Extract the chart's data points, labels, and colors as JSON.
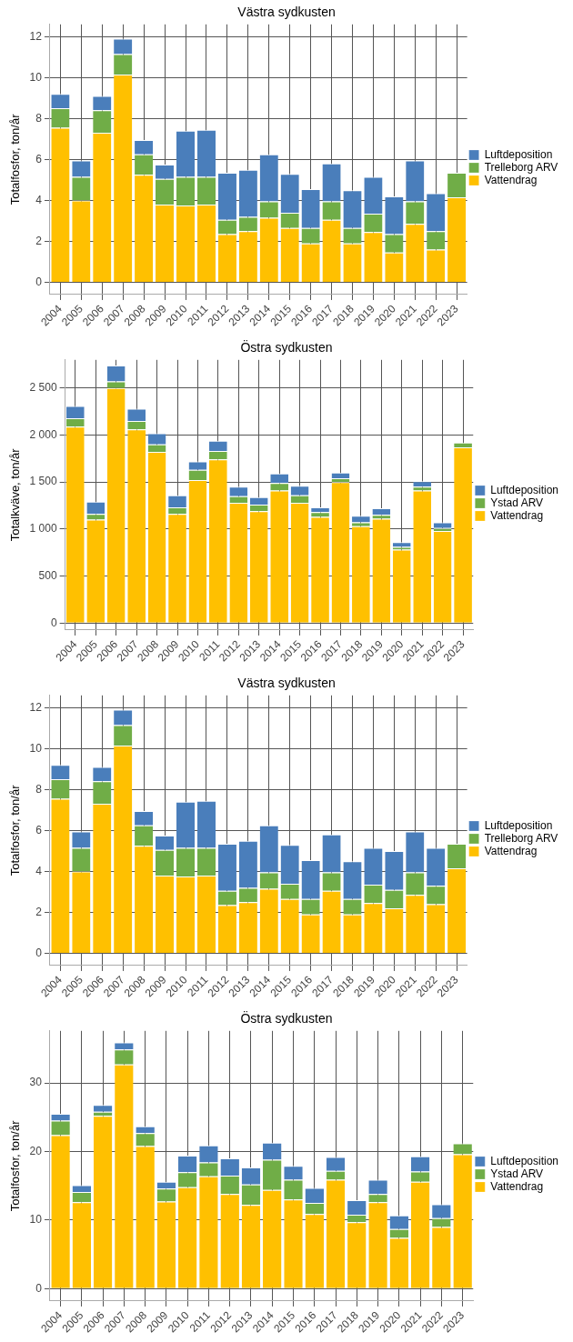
{
  "chart_data": [
    {
      "type": "bar",
      "stacked": true,
      "title": "Västra sydkusten",
      "ylabel": "Totalfosfor, ton/år",
      "categories": [
        "2004",
        "2005",
        "2006",
        "2007",
        "2008",
        "2009",
        "2010",
        "2011",
        "2012",
        "2013",
        "2014",
        "2015",
        "2016",
        "2017",
        "2018",
        "2019",
        "2020",
        "2021",
        "2022",
        "2023"
      ],
      "ylim": [
        -0.6,
        12.6
      ],
      "yticks": [
        0,
        2,
        4,
        6,
        8,
        10,
        12
      ],
      "grid": true,
      "legend": "right",
      "series": [
        {
          "name": "Vattendrag",
          "color": "#ffc000",
          "values": [
            7.55,
            4.0,
            7.3,
            10.15,
            5.25,
            3.8,
            3.75,
            3.8,
            2.35,
            2.5,
            3.15,
            2.65,
            1.9,
            3.05,
            1.9,
            2.45,
            1.45,
            2.85,
            1.6,
            4.15
          ]
        },
        {
          "name": "Trelleborg ARV",
          "color": "#70ad47",
          "values": [
            0.95,
            1.15,
            1.1,
            1.0,
            1.0,
            1.25,
            1.4,
            1.35,
            0.7,
            0.7,
            0.8,
            0.75,
            0.75,
            0.9,
            0.75,
            0.9,
            0.9,
            1.1,
            0.9,
            1.2
          ]
        },
        {
          "name": "Luftdeposition",
          "color": "#4a7ebb",
          "values": [
            0.7,
            0.8,
            0.7,
            0.75,
            0.7,
            0.7,
            2.25,
            2.3,
            2.3,
            2.3,
            2.3,
            1.9,
            1.9,
            1.85,
            1.85,
            1.8,
            1.85,
            2.0,
            1.85,
            null
          ]
        }
      ]
    },
    {
      "type": "bar",
      "stacked": true,
      "title": "Östra sydkusten",
      "ylabel": "Totalkväve, ton/år",
      "categories": [
        "2004",
        "2005",
        "2006",
        "2007",
        "2008",
        "2009",
        "2010",
        "2011",
        "2012",
        "2013",
        "2014",
        "2015",
        "2016",
        "2017",
        "2018",
        "2019",
        "2020",
        "2021",
        "2022",
        "2023"
      ],
      "ylim": [
        -75,
        2800
      ],
      "yticks": [
        0,
        500,
        {
          "value": 1000,
          "label": "1 000"
        },
        {
          "value": 1500,
          "label": "1 500"
        },
        {
          "value": 2000,
          "label": "2 000"
        },
        {
          "value": 2500,
          "label": "2 500"
        }
      ],
      "grid": true,
      "legend": "right",
      "series": [
        {
          "name": "Vattendrag",
          "color": "#ffc000",
          "values": [
            2090,
            1100,
            2500,
            2060,
            1820,
            1160,
            1520,
            1740,
            1280,
            1190,
            1410,
            1280,
            1130,
            1500,
            1030,
            1110,
            780,
            1410,
            980,
            1870
          ]
        },
        {
          "name": "Ystad ARV",
          "color": "#70ad47",
          "values": [
            90,
            60,
            70,
            90,
            80,
            70,
            110,
            90,
            70,
            70,
            80,
            80,
            50,
            40,
            40,
            40,
            30,
            40,
            30,
            50
          ]
        },
        {
          "name": "Luftdeposition",
          "color": "#4a7ebb",
          "values": [
            130,
            130,
            170,
            130,
            120,
            130,
            90,
            110,
            100,
            80,
            100,
            100,
            50,
            60,
            70,
            70,
            50,
            60,
            60,
            null
          ]
        }
      ]
    },
    {
      "type": "bar",
      "stacked": true,
      "title": "Västra sydkusten",
      "ylabel": "Totalfosfor, ton/år",
      "categories": [
        "2004",
        "2005",
        "2006",
        "2007",
        "2008",
        "2009",
        "2010",
        "2011",
        "2012",
        "2013",
        "2014",
        "2015",
        "2016",
        "2017",
        "2018",
        "2019",
        "2020",
        "2021",
        "2022",
        "2023"
      ],
      "ylim": [
        -0.6,
        12.6
      ],
      "yticks": [
        0,
        2,
        4,
        6,
        8,
        10,
        12
      ],
      "grid": true,
      "legend": "right",
      "series": [
        {
          "name": "Vattendrag",
          "color": "#ffc000",
          "values": [
            7.55,
            4.0,
            7.3,
            10.15,
            5.25,
            3.8,
            3.75,
            3.8,
            2.35,
            2.5,
            3.15,
            2.65,
            1.9,
            3.05,
            1.9,
            2.45,
            2.2,
            2.85,
            2.4,
            4.15
          ]
        },
        {
          "name": "Trelleborg ARV",
          "color": "#70ad47",
          "values": [
            0.95,
            1.15,
            1.1,
            1.0,
            1.0,
            1.25,
            1.4,
            1.35,
            0.7,
            0.7,
            0.8,
            0.75,
            0.75,
            0.9,
            0.75,
            0.9,
            0.9,
            1.1,
            0.9,
            1.2
          ]
        },
        {
          "name": "Luftdeposition",
          "color": "#4a7ebb",
          "values": [
            0.7,
            0.8,
            0.7,
            0.75,
            0.7,
            0.7,
            2.25,
            2.3,
            2.3,
            2.3,
            2.3,
            1.9,
            1.9,
            1.85,
            1.85,
            1.8,
            1.9,
            2.0,
            1.85,
            null
          ]
        }
      ]
    },
    {
      "type": "bar",
      "stacked": true,
      "title": "Östra sydkusten",
      "ylabel": "Totalfosfor, ton/år",
      "categories": [
        "2004",
        "2005",
        "2006",
        "2007",
        "2008",
        "2009",
        "2010",
        "2011",
        "2012",
        "2013",
        "2014",
        "2015",
        "2016",
        "2017",
        "2018",
        "2019",
        "2020",
        "2021",
        "2022",
        "2023"
      ],
      "ylim": [
        -1.8,
        37.6
      ],
      "yticks": [
        0,
        10,
        20,
        30
      ],
      "grid": true,
      "legend": "right",
      "series": [
        {
          "name": "Vattendrag",
          "color": "#ffc000",
          "values": [
            22.4,
            12.6,
            25.2,
            32.7,
            20.8,
            12.7,
            14.8,
            16.4,
            13.8,
            12.2,
            14.4,
            13.0,
            10.9,
            15.9,
            9.7,
            12.6,
            7.4,
            15.6,
            9.0,
            19.6
          ]
        },
        {
          "name": "Ystad ARV",
          "color": "#70ad47",
          "values": [
            2.1,
            1.5,
            0.6,
            2.2,
            1.9,
            1.9,
            2.2,
            2.0,
            2.7,
            3.0,
            4.4,
            2.9,
            1.6,
            1.3,
            1.1,
            1.2,
            1.3,
            1.5,
            1.3,
            1.6
          ]
        },
        {
          "name": "Luftdeposition",
          "color": "#4a7ebb",
          "values": [
            1.0,
            1.0,
            1.0,
            1.0,
            1.0,
            1.0,
            2.4,
            2.5,
            2.5,
            2.5,
            2.5,
            2.0,
            2.2,
            2.0,
            2.1,
            2.1,
            2.0,
            2.2,
            2.0,
            null
          ]
        }
      ]
    }
  ]
}
